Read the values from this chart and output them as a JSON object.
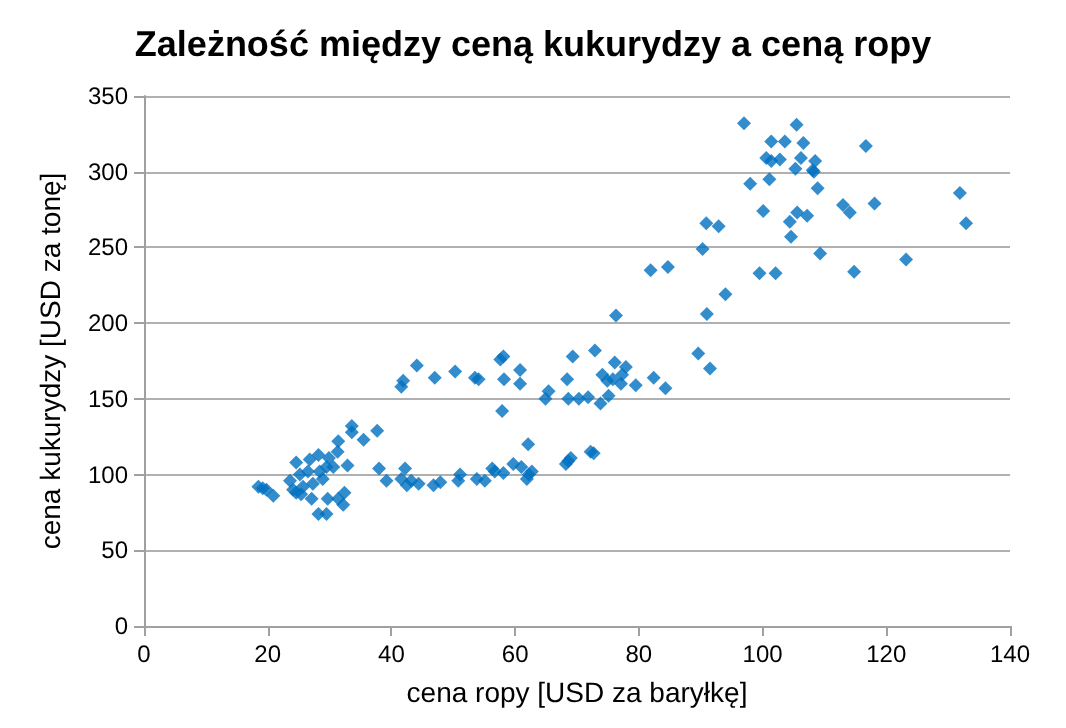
{
  "chart_data": {
    "type": "scatter",
    "title": "Zależność między ceną kukurydzy a ceną ropy",
    "xlabel": "cena ropy [USD za baryłkę]",
    "ylabel": "cena kukurydzy [USD za tonę]",
    "xlim": [
      0,
      140
    ],
    "xticks": [
      0,
      20,
      40,
      60,
      80,
      100,
      120,
      140
    ],
    "ylim": [
      0,
      350
    ],
    "yticks": [
      0,
      50,
      100,
      150,
      200,
      250,
      300,
      350
    ],
    "grid": "y",
    "marker": "diamond",
    "series": [
      {
        "color": "#0070c0",
        "x": [
          18.5,
          19.2,
          19.8,
          20.9,
          23.6,
          24.6,
          25.2,
          25.7,
          25.4,
          26.8,
          27.3,
          28.2,
          28.9,
          29.5,
          29.9,
          30.6,
          31.4,
          31.3,
          33.6,
          33.6,
          35.5,
          37.7,
          32.9,
          27.1,
          28.2,
          29.5,
          29.7,
          31.4,
          32.2,
          32.4,
          24.1,
          26.5,
          24.6,
          28.4,
          38,
          39.2,
          42.2,
          41.6,
          42.5,
          43.2,
          44.4,
          44.1,
          41.9,
          41.6,
          46.8,
          47.9,
          50.8,
          51.1,
          53.8,
          55.1,
          56.3,
          56.7,
          58.1,
          59.7,
          61,
          61.9,
          62.2,
          62.7,
          62.1,
          47,
          50.3,
          53.5,
          54.1,
          57.6,
          58.1,
          58.2,
          57.9,
          60.8,
          60.8,
          64.9,
          65.4,
          68.2,
          68.6,
          69,
          68.4,
          69.3,
          68.6,
          70.3,
          71.8,
          72.2,
          72.7,
          72.9,
          73.8,
          74.1,
          74.9,
          75.1,
          75.8,
          76.1,
          77.3,
          77.9,
          77.1,
          79.5,
          76.3,
          81.9,
          84.7,
          82.4,
          84.3,
          89.6,
          91.5,
          91,
          94,
          90.3,
          90.9,
          92.9,
          97,
          98,
          99.5,
          102.1,
          100.1,
          101.1,
          101.4,
          100.6,
          101.4,
          102.8,
          103.6,
          104.4,
          104.6,
          105.5,
          106.6,
          106.2,
          105.3,
          105.6,
          107.2,
          108.1,
          108.5,
          108.3,
          108.9,
          109.3,
          113,
          114.1,
          114.8,
          116.7,
          118.1,
          123.2,
          131.9,
          132.9
        ],
        "values": [
          92,
          91,
          90,
          86,
          96,
          108,
          100,
          92,
          87,
          110,
          94,
          113,
          97,
          105,
          111,
          105,
          122,
          115,
          132,
          128,
          123,
          129,
          106,
          84,
          74,
          74,
          84,
          84,
          80,
          88,
          90,
          102,
          88,
          102,
          104,
          96,
          104,
          97,
          93,
          96,
          94,
          172,
          162,
          158,
          93,
          95,
          96,
          100,
          97,
          96,
          104,
          102,
          101,
          107,
          105,
          97,
          100,
          102,
          120,
          164,
          168,
          164,
          163,
          176,
          178,
          163,
          142,
          169,
          160,
          150,
          155,
          107,
          109,
          111,
          163,
          178,
          150,
          150,
          151,
          115,
          114,
          182,
          147,
          166,
          162,
          152,
          163,
          174,
          166,
          171,
          160,
          159,
          205,
          235,
          237,
          164,
          157,
          180,
          170,
          206,
          219,
          249,
          266,
          264,
          332,
          292,
          233,
          233,
          274,
          295,
          320,
          309,
          307,
          308,
          320,
          267,
          257,
          331,
          319,
          309,
          302,
          273,
          271,
          301,
          307,
          300,
          289,
          246,
          278,
          273,
          234,
          317,
          279,
          242,
          286,
          266
        ]
      }
    ]
  }
}
